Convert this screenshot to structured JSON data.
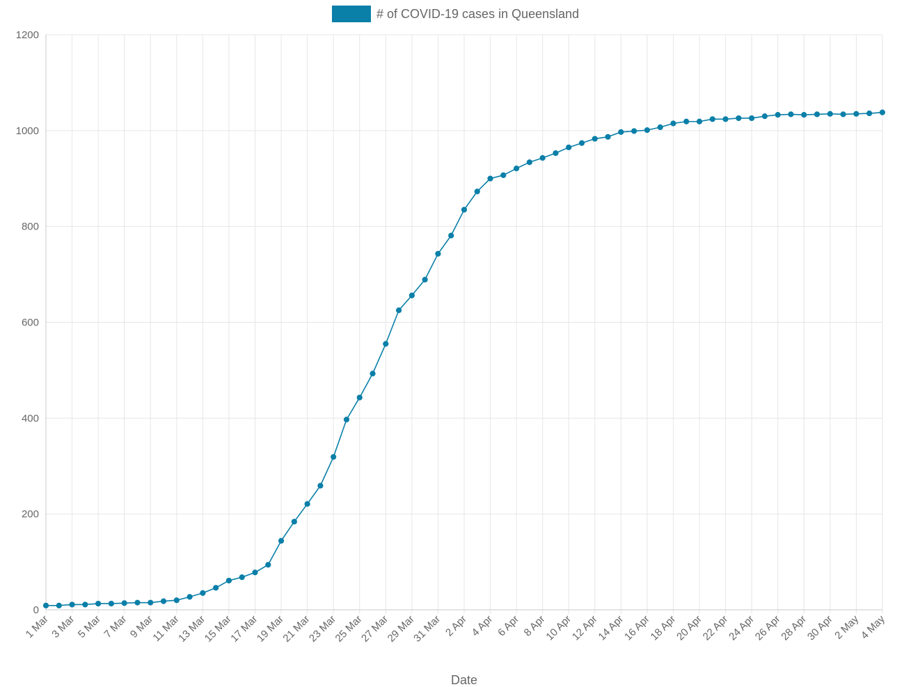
{
  "chart_data": {
    "type": "line",
    "xlabel": "Date",
    "ylabel": "",
    "ylim": [
      0,
      1200
    ],
    "yticks": [
      0,
      200,
      400,
      600,
      800,
      1000,
      1200
    ],
    "xticks": [
      "1 Mar",
      "3 Mar",
      "5 Mar",
      "7 Mar",
      "9 Mar",
      "11 Mar",
      "13 Mar",
      "15 Mar",
      "17 Mar",
      "19 Mar",
      "21 Mar",
      "23 Mar",
      "25 Mar",
      "27 Mar",
      "29 Mar",
      "31 Mar",
      "2 Apr",
      "4 Apr",
      "6 Apr",
      "8 Apr",
      "10 Apr",
      "12 Apr",
      "14 Apr",
      "16 Apr",
      "18 Apr",
      "20 Apr",
      "22 Apr",
      "24 Apr",
      "26 Apr",
      "28 Apr",
      "30 Apr",
      "2 May",
      "4 May"
    ],
    "grid": true,
    "legend_position": "top",
    "categories": [
      "1 Mar",
      "2 Mar",
      "3 Mar",
      "4 Mar",
      "5 Mar",
      "6 Mar",
      "7 Mar",
      "8 Mar",
      "9 Mar",
      "10 Mar",
      "11 Mar",
      "12 Mar",
      "13 Mar",
      "14 Mar",
      "15 Mar",
      "16 Mar",
      "17 Mar",
      "18 Mar",
      "19 Mar",
      "20 Mar",
      "21 Mar",
      "22 Mar",
      "23 Mar",
      "24 Mar",
      "25 Mar",
      "26 Mar",
      "27 Mar",
      "28 Mar",
      "29 Mar",
      "30 Mar",
      "31 Mar",
      "1 Apr",
      "2 Apr",
      "3 Apr",
      "4 Apr",
      "5 Apr",
      "6 Apr",
      "7 Apr",
      "8 Apr",
      "9 Apr",
      "10 Apr",
      "11 Apr",
      "12 Apr",
      "13 Apr",
      "14 Apr",
      "15 Apr",
      "16 Apr",
      "17 Apr",
      "18 Apr",
      "19 Apr",
      "20 Apr",
      "21 Apr",
      "22 Apr",
      "23 Apr",
      "24 Apr",
      "25 Apr",
      "26 Apr",
      "27 Apr",
      "28 Apr",
      "29 Apr",
      "30 Apr",
      "1 May",
      "2 May",
      "3 May",
      "4 May"
    ],
    "series": [
      {
        "name": "# of COVID-19 cases in Queensland",
        "color": "#0a7fa8",
        "values": [
          9,
          9,
          11,
          11,
          13,
          13,
          14,
          15,
          15,
          18,
          20,
          27,
          35,
          46,
          61,
          68,
          78,
          94,
          144,
          184,
          221,
          259,
          319,
          397,
          443,
          493,
          555,
          625,
          656,
          689,
          743,
          781,
          835,
          873,
          900,
          907,
          921,
          934,
          943,
          953,
          965,
          974,
          983,
          987,
          997,
          999,
          1001,
          1007,
          1015,
          1019,
          1019,
          1024,
          1024,
          1026,
          1026,
          1030,
          1033,
          1034,
          1033,
          1034,
          1035,
          1034,
          1035,
          1036,
          1038
        ]
      }
    ]
  }
}
